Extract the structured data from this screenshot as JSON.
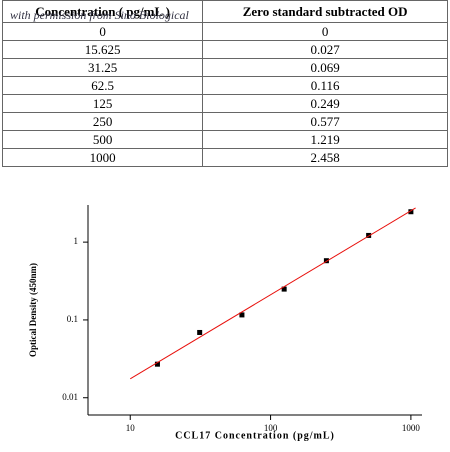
{
  "table": {
    "header": [
      "Concentration ( pg/mL )",
      "Zero standard subtracted OD"
    ],
    "watermark": "with permission from Sino Biological",
    "rows": [
      [
        "0",
        "0"
      ],
      [
        "15.625",
        "0.027"
      ],
      [
        "31.25",
        "0.069"
      ],
      [
        "62.5",
        "0.116"
      ],
      [
        "125",
        "0.249"
      ],
      [
        "250",
        "0.577"
      ],
      [
        "500",
        "1.219"
      ],
      [
        "1000",
        "2.458"
      ]
    ]
  },
  "chart_data": {
    "type": "scatter",
    "x_label": "CCL17 Concentration (pg/mL)",
    "y_label": "Optical Density (450nm)",
    "xlog": true,
    "ylog": true,
    "xlim": [
      5,
      1200
    ],
    "ylim": [
      0.006,
      3
    ],
    "xticks": [
      10,
      100,
      1000
    ],
    "yticks": [
      0.01,
      0.1,
      1
    ],
    "series": [
      {
        "mode": "markers",
        "color": "#000000",
        "x": [
          15.625,
          31.25,
          62.5,
          125,
          250,
          500,
          1000
        ],
        "values": [
          0.027,
          0.069,
          0.116,
          0.249,
          0.577,
          1.219,
          2.458
        ]
      },
      {
        "mode": "line",
        "color": "#e8100c",
        "x": [
          10,
          1080
        ],
        "values": [
          0.0175,
          2.75
        ]
      }
    ]
  }
}
